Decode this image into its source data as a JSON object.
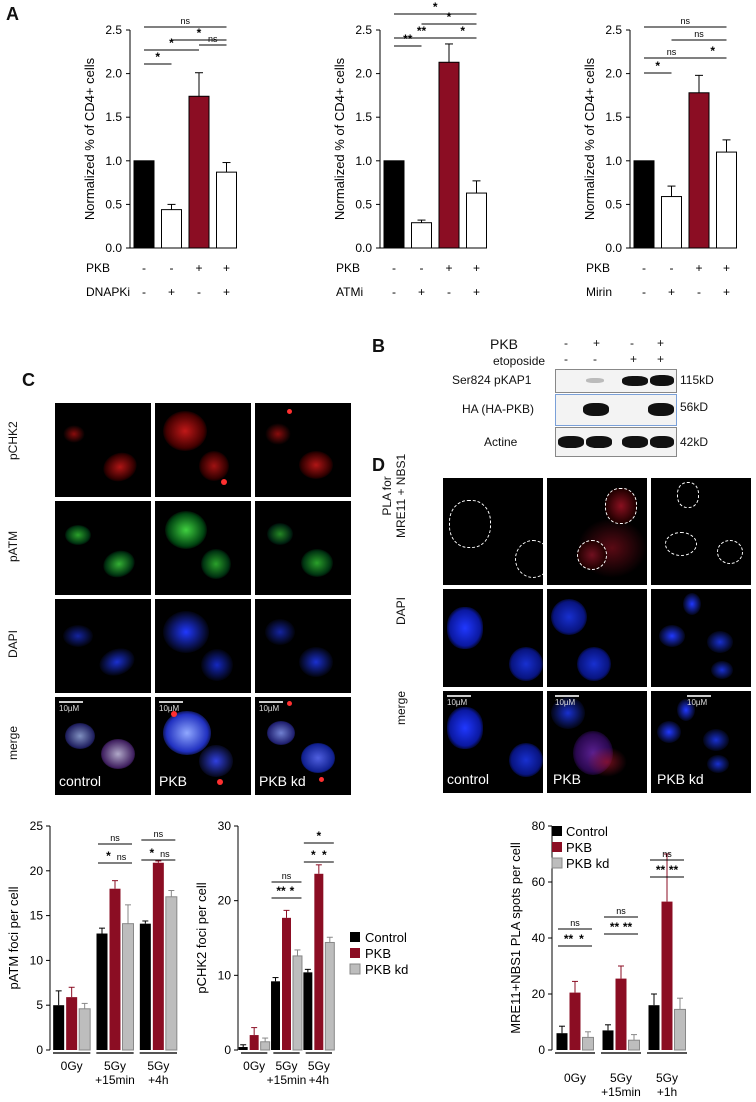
{
  "panels": {
    "A": "A",
    "B": "B",
    "C": "C",
    "D": "D"
  },
  "colors": {
    "black": "#000000",
    "red": "#8b0d23",
    "white": "#ffffff",
    "grey": "#bdbdbd",
    "nucleus_blue": "#1030ff",
    "foci_red": "#ff2020",
    "foci_green": "#40ff40"
  },
  "panelA": {
    "ylabel": "Normalized % of CD4+ cells",
    "row_pkb": "PKB",
    "pkb_signs": [
      "-",
      "-",
      "+",
      "+"
    ],
    "inhibitor_signs": [
      "-",
      "+",
      "-",
      "+"
    ]
  },
  "chart_data": [
    {
      "type": "bar",
      "id": "A-left",
      "ylabel": "Normalized % of CD4+ cells",
      "ylim": [
        0,
        2.5
      ],
      "yticks": [
        "0.0",
        "0.5",
        "1.0",
        "1.5",
        "2.0",
        "2.5"
      ],
      "row_labels": [
        "PKB",
        "DNAPKi"
      ],
      "values": [
        1.0,
        0.44,
        1.74,
        0.87
      ],
      "errors": [
        0,
        0.06,
        0.27,
        0.11
      ],
      "colors": [
        "#000000",
        "#ffffff",
        "#8b0d23",
        "#ffffff"
      ],
      "significance": [
        "ns",
        "*",
        "*",
        "*",
        "ns"
      ]
    },
    {
      "type": "bar",
      "id": "A-mid",
      "ylabel": "Normalized % of CD4+ cells",
      "ylim": [
        0,
        2.5
      ],
      "yticks": [
        "0.0",
        "0.5",
        "1.0",
        "1.5",
        "2.0",
        "2.5"
      ],
      "row_labels": [
        "PKB",
        "ATMi"
      ],
      "values": [
        1.0,
        0.29,
        2.13,
        0.63
      ],
      "errors": [
        0,
        0.03,
        0.21,
        0.14
      ],
      "colors": [
        "#000000",
        "#ffffff",
        "#8b0d23",
        "#ffffff"
      ],
      "significance": [
        "*",
        "*",
        "**",
        "**",
        "*"
      ]
    },
    {
      "type": "bar",
      "id": "A-right",
      "ylabel": "Normalized % of CD4+ cells",
      "ylim": [
        0,
        2.5
      ],
      "yticks": [
        "0.0",
        "0.5",
        "1.0",
        "1.5",
        "2.0",
        "2.5"
      ],
      "row_labels": [
        "PKB",
        "Mirin"
      ],
      "values": [
        1.0,
        0.59,
        1.78,
        1.1
      ],
      "errors": [
        0,
        0.12,
        0.2,
        0.14
      ],
      "colors": [
        "#000000",
        "#ffffff",
        "#8b0d23",
        "#ffffff"
      ],
      "significance": [
        "ns",
        "ns",
        "*",
        "ns",
        "*"
      ]
    },
    {
      "type": "bar",
      "id": "C-pATM",
      "ylabel": "pATM foci per cell",
      "ylim": [
        0,
        25
      ],
      "yticks": [
        "0",
        "5",
        "10",
        "15",
        "20",
        "25"
      ],
      "categories": [
        "0Gy",
        "5Gy +15min",
        "5Gy +4h"
      ],
      "series": [
        {
          "name": "Control",
          "values": [
            5.0,
            13.0,
            14.1
          ],
          "errors": [
            1.6,
            0.6,
            0.3
          ]
        },
        {
          "name": "PKB",
          "values": [
            5.9,
            18.0,
            20.9
          ],
          "errors": [
            1.1,
            0.9,
            0.2
          ]
        },
        {
          "name": "PKB kd",
          "values": [
            4.6,
            14.1,
            17.1
          ],
          "errors": [
            0.6,
            2.1,
            0.7
          ]
        }
      ],
      "significance": [
        "ns",
        "*",
        "ns",
        "ns",
        "*",
        "ns"
      ]
    },
    {
      "type": "bar",
      "id": "C-pCHK2",
      "ylabel": "pCHK2 foci per cell",
      "ylim": [
        0,
        30
      ],
      "yticks": [
        "0",
        "10",
        "20",
        "30"
      ],
      "categories": [
        "0Gy",
        "5Gy +15min",
        "5Gy +4h"
      ],
      "series": [
        {
          "name": "Control",
          "values": [
            0.4,
            9.2,
            10.4
          ],
          "errors": [
            0.3,
            0.5,
            0.4
          ]
        },
        {
          "name": "PKB",
          "values": [
            2.0,
            17.7,
            23.6
          ],
          "errors": [
            1.0,
            1.0,
            1.2
          ]
        },
        {
          "name": "PKB kd",
          "values": [
            1.1,
            12.6,
            14.4
          ],
          "errors": [
            0.5,
            0.8,
            0.7
          ]
        }
      ],
      "significance": [
        "ns",
        "**",
        "*",
        "*",
        "*",
        "*"
      ]
    },
    {
      "type": "bar",
      "id": "D-PLA",
      "ylabel": "MRE11+NBS1 PLA  spots per cell",
      "ylim": [
        0,
        80
      ],
      "yticks": [
        "0",
        "20",
        "40",
        "60",
        "80"
      ],
      "categories": [
        "0Gy",
        "5Gy +15min",
        "5Gy +1h"
      ],
      "series": [
        {
          "name": "Control",
          "values": [
            6.0,
            7.0,
            16.0
          ],
          "errors": [
            2.5,
            2.0,
            4.0
          ]
        },
        {
          "name": "PKB",
          "values": [
            20.5,
            25.5,
            53.0
          ],
          "errors": [
            4.0,
            4.5,
            17.0
          ]
        },
        {
          "name": "PKB kd",
          "values": [
            4.5,
            3.5,
            14.5
          ],
          "errors": [
            2.0,
            2.0,
            4.0
          ]
        }
      ],
      "significance": [
        "ns",
        "**",
        "*",
        "ns",
        "**",
        "**",
        "ns",
        "**",
        "**"
      ]
    }
  ],
  "legend": [
    "Control",
    "PKB",
    "PKB kd"
  ],
  "panelB": {
    "pkb": "PKB",
    "etoposide": "etoposide",
    "pkb_signs": [
      "-",
      "+",
      "-",
      "+"
    ],
    "eto_signs": [
      "-",
      "-",
      "+",
      "+"
    ],
    "rows": [
      {
        "label": "Ser824 pKAP1",
        "size": "115kD"
      },
      {
        "label": "HA (HA-PKB)",
        "size": "56kD"
      },
      {
        "label": "Actine",
        "size": "42kD"
      }
    ]
  },
  "panelC": {
    "rows": [
      "pCHK2",
      "pATM",
      "DAPI",
      "merge"
    ],
    "conditions": [
      "control",
      "PKB",
      "PKB kd"
    ],
    "scale": "10µM"
  },
  "panelD": {
    "rows": [
      "PLA for\nMRE11 + NBS1",
      "DAPI",
      "merge"
    ],
    "row1a": "PLA for",
    "row1b": "MRE11 + NBS1",
    "conditions": [
      "control",
      "PKB",
      "PKB kd"
    ],
    "scale": "10µM"
  }
}
